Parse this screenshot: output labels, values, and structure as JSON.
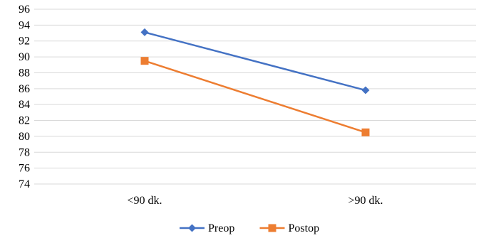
{
  "chart_data": {
    "type": "line",
    "categories": [
      "<90 dk.",
      ">90 dk."
    ],
    "series": [
      {
        "name": "Preop",
        "values": [
          93.1,
          85.8
        ],
        "color": "#4472C4",
        "marker": "diamond"
      },
      {
        "name": "Postop",
        "values": [
          89.5,
          80.5
        ],
        "color": "#ED7D31",
        "marker": "square"
      }
    ],
    "ylim": [
      74,
      96
    ],
    "yticks": [
      74,
      76,
      78,
      80,
      82,
      84,
      86,
      88,
      90,
      92,
      94,
      96
    ],
    "grid": true,
    "legend": "bottom"
  }
}
